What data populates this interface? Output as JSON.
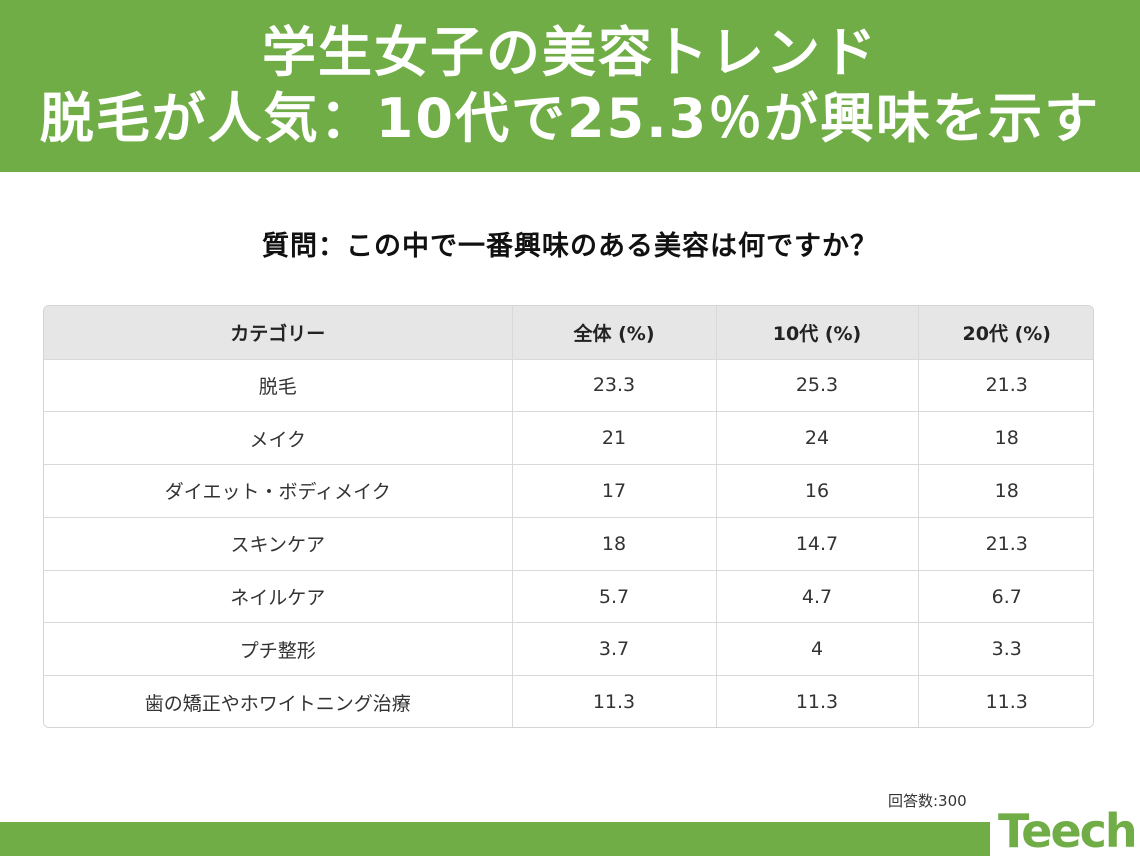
{
  "header": {
    "title_line1": "学生女子の美容トレンド",
    "title_line2": "脱毛が人気：10代で25.3％が興味を示す"
  },
  "question": "質問：この中で一番興味のある美容は何ですか？",
  "table": {
    "columns": [
      "カテゴリー",
      "全体 (%)",
      "10代 (%)",
      "20代 (%)"
    ],
    "rows": [
      [
        "脱毛",
        "23.3",
        "25.3",
        "21.3"
      ],
      [
        "メイク",
        "21",
        "24",
        "18"
      ],
      [
        "ダイエット・ボディメイク",
        "17",
        "16",
        "18"
      ],
      [
        "スキンケア",
        "18",
        "14.7",
        "21.3"
      ],
      [
        "ネイルケア",
        "5.7",
        "4.7",
        "6.7"
      ],
      [
        "プチ整形",
        "3.7",
        "4",
        "3.3"
      ],
      [
        "歯の矯正やホワイトニング治療",
        "11.3",
        "11.3",
        "11.3"
      ]
    ]
  },
  "respondents": "回答数:300",
  "logo": "Teech",
  "colors": {
    "brand_green": "#70ad47",
    "header_row_bg": "#e6e6e6"
  }
}
